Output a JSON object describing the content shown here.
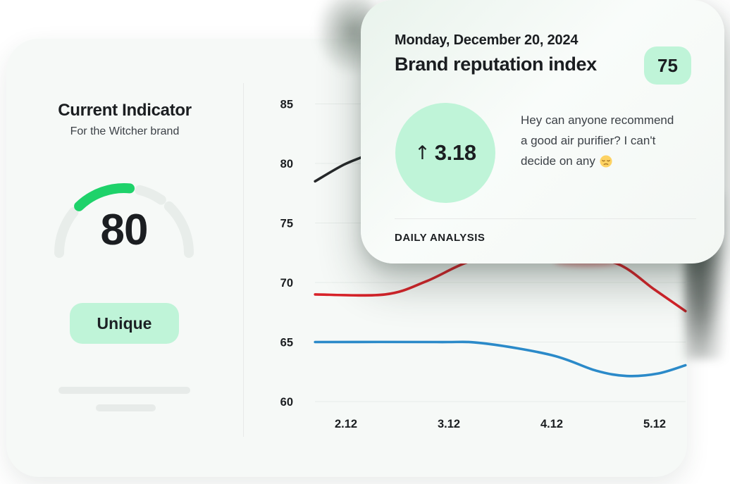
{
  "theme": {
    "mint": "#bff4d8",
    "green": "#1ed26a",
    "red": "#d8232a",
    "blue": "#2b8ac9",
    "dark": "#1b1e21",
    "muted": "#3c4147",
    "card_bg": "#f6f9f7",
    "grid": "#e7ece9",
    "skeleton": "#e7ebe9",
    "track": "#e8edea",
    "divider": "#e7e9e8"
  },
  "left_panel": {
    "title": "Current Indicator",
    "subtitle": "For the Witcher brand",
    "gauge": {
      "value": "80"
    },
    "tag_label": "Unique"
  },
  "overlay_card": {
    "date": "Monday, December 20, 2024",
    "title": "Brand reputation index",
    "score": "75",
    "delta": {
      "arrow": "↑",
      "value": "3.18"
    },
    "message_lines": [
      "Hey can anyone recommend",
      "a good air purifier? I can't",
      "decide on any"
    ],
    "message_emoji": "😞",
    "section_label": "DAILY ANALYSIS"
  },
  "chart_data": {
    "type": "line",
    "title": "",
    "xlabel": "",
    "ylabel": "",
    "grid": true,
    "legend": false,
    "x_tick_labels": [
      "2.12",
      "3.12",
      "4.12",
      "5.12"
    ],
    "x_tick_values": [
      2.12,
      3.12,
      4.12,
      5.12
    ],
    "y_tick_values": [
      85,
      80,
      75,
      70,
      65,
      60
    ],
    "x_range": [
      1.82,
      5.42
    ],
    "y_range": [
      60,
      85
    ],
    "series": [
      {
        "name": "dark",
        "color": "#26282a",
        "points": [
          [
            1.82,
            78.5
          ],
          [
            2.1,
            79.9
          ],
          [
            2.35,
            80.8
          ],
          [
            2.8,
            82.6
          ],
          [
            3.3,
            83.6
          ],
          [
            4.0,
            83.9
          ],
          [
            5.42,
            83.2
          ]
        ]
      },
      {
        "name": "red",
        "color": "#d8232a",
        "points": [
          [
            1.82,
            69.0
          ],
          [
            2.5,
            69.0
          ],
          [
            2.9,
            70.1
          ],
          [
            3.3,
            71.7
          ],
          [
            3.7,
            72.4
          ],
          [
            4.25,
            72.3
          ],
          [
            4.75,
            71.6
          ],
          [
            5.12,
            69.4
          ],
          [
            5.42,
            67.6
          ]
        ]
      },
      {
        "name": "blue",
        "color": "#2b8ac9",
        "points": [
          [
            1.82,
            65.0
          ],
          [
            3.0,
            65.0
          ],
          [
            3.45,
            64.9
          ],
          [
            4.12,
            63.9
          ],
          [
            4.55,
            62.6
          ],
          [
            4.85,
            62.15
          ],
          [
            5.15,
            62.35
          ],
          [
            5.42,
            63.05
          ]
        ]
      }
    ]
  }
}
